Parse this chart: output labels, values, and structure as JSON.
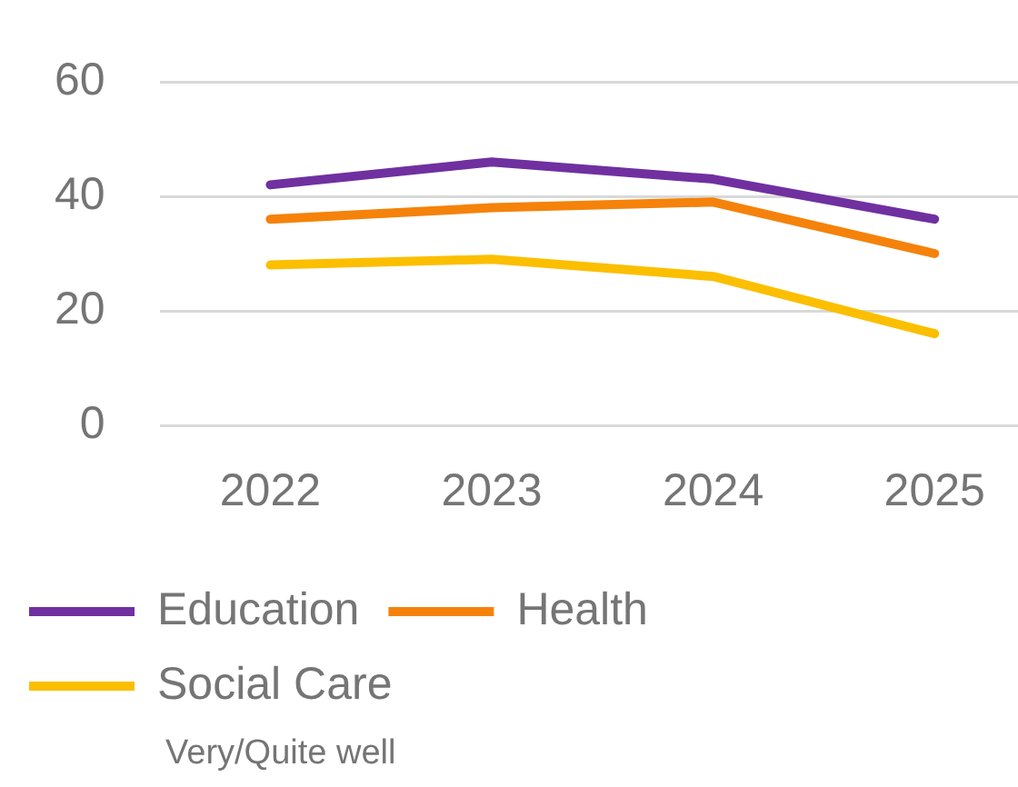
{
  "chart_data": {
    "type": "line",
    "categories": [
      "2022",
      "2023",
      "2024",
      "2025"
    ],
    "series": [
      {
        "name": "Education",
        "color": "#7030a0",
        "values": [
          42,
          46,
          43,
          36
        ]
      },
      {
        "name": "Health",
        "color": "#f5820a",
        "values": [
          36,
          38,
          39,
          30
        ]
      },
      {
        "name": "Social Care",
        "color": "#fbbf00",
        "values": [
          28,
          29,
          26,
          16
        ]
      }
    ],
    "ylim": [
      0,
      60
    ],
    "yticks": [
      0,
      20,
      40,
      60
    ],
    "grid": "y",
    "legend": "bottom",
    "marker": "none",
    "line_style": "solid",
    "annotations": [
      "Very/Quite well"
    ]
  }
}
